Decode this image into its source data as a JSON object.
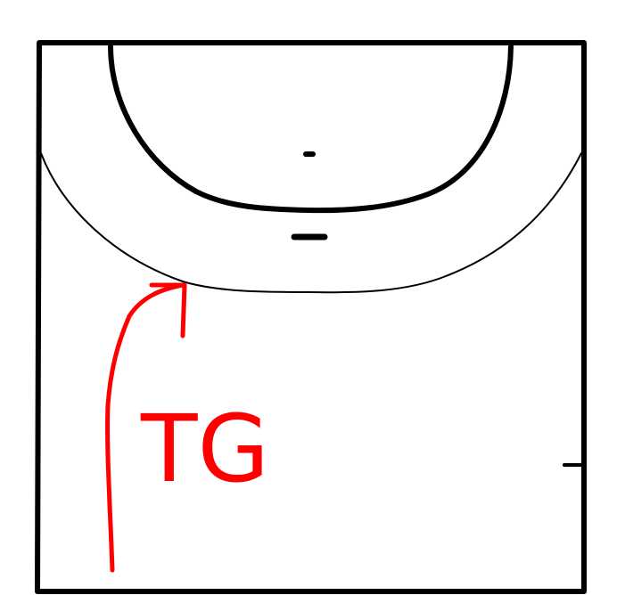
{
  "diagram": {
    "annotation_text": "TG",
    "colors": {
      "court_lines": "#000000",
      "annotation": "#ff0000",
      "background": "#ffffff"
    },
    "elements": [
      "court-boundary",
      "goal-area-line",
      "free-throw-line",
      "penalty-mark",
      "goalkeeper-restraining-line",
      "substitution-line-mark",
      "annotation-arrow"
    ]
  }
}
